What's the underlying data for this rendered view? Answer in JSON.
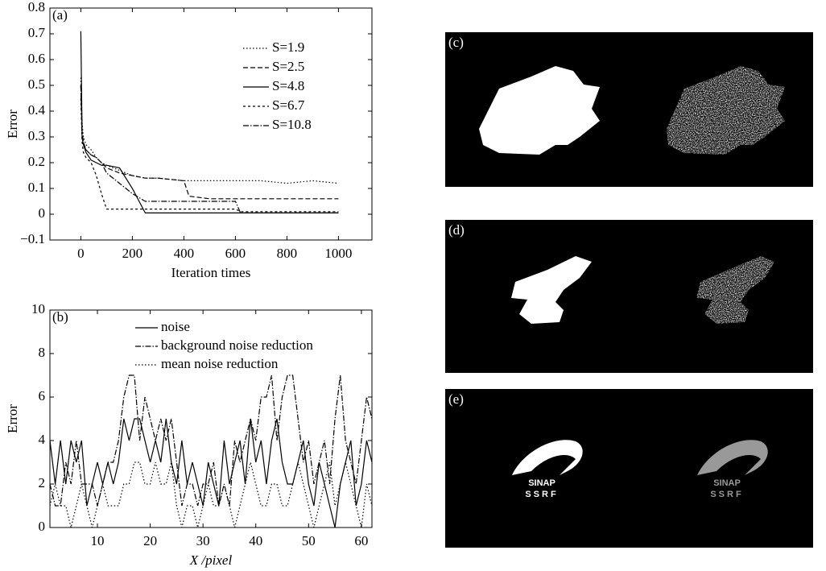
{
  "chart_data": [
    {
      "type": "line",
      "panel_label": "(a)",
      "x_label": "Iteration times",
      "y_label": "Error",
      "x": [
        0,
        5,
        10,
        20,
        40,
        60,
        80,
        100,
        150,
        200,
        250,
        300,
        400,
        420,
        500,
        600,
        620,
        700,
        800,
        900,
        1000
      ],
      "xlim": [
        -120,
        1130
      ],
      "xticks": [
        0,
        200,
        400,
        600,
        800,
        1000
      ],
      "ylim": [
        -0.1,
        0.8
      ],
      "yticks": [
        {
          "value": -0.1,
          "label": "−0.1"
        },
        0,
        0.1,
        0.2,
        0.3,
        0.4,
        0.5,
        0.6,
        0.7,
        0.8
      ],
      "legend": "upper right",
      "series": [
        {
          "name": "S=1.9",
          "color": "#000",
          "line_style": "dotted",
          "values": [
            0.53,
            0.35,
            0.3,
            0.27,
            0.25,
            0.22,
            0.2,
            0.19,
            0.17,
            0.15,
            0.14,
            0.14,
            0.13,
            0.13,
            0.13,
            0.13,
            0.13,
            0.13,
            0.12,
            0.13,
            0.12
          ]
        },
        {
          "name": "S=2.5",
          "color": "#000",
          "line_style": "dashed",
          "values": [
            0.5,
            0.32,
            0.28,
            0.25,
            0.23,
            0.22,
            0.2,
            0.18,
            0.16,
            0.15,
            0.14,
            0.14,
            0.13,
            0.07,
            0.06,
            0.06,
            0.06,
            0.06,
            0.06,
            0.06,
            0.06
          ]
        },
        {
          "name": "S=4.8",
          "color": "#000",
          "line_style": "solid",
          "values": [
            0.71,
            0.3,
            0.27,
            0.24,
            0.21,
            0.2,
            0.19,
            0.19,
            0.18,
            0.1,
            0.005,
            0.005,
            0.005,
            0.005,
            0.005,
            0.005,
            0.005,
            0.005,
            0.005,
            0.005,
            0.005
          ]
        },
        {
          "name": "S=6.7",
          "color": "#000",
          "line_style": "short-dashed",
          "values": [
            0.45,
            0.28,
            0.24,
            0.22,
            0.2,
            0.15,
            0.08,
            0.02,
            0.02,
            0.02,
            0.02,
            0.02,
            0.02,
            0.02,
            0.02,
            0.02,
            0.01,
            0.01,
            0.01,
            0.01,
            0.01
          ]
        },
        {
          "name": "S=10.8",
          "color": "#000",
          "line_style": "dash-dot",
          "values": [
            0.5,
            0.3,
            0.27,
            0.25,
            0.23,
            0.22,
            0.2,
            0.16,
            0.12,
            0.08,
            0.05,
            0.05,
            0.05,
            0.05,
            0.05,
            0.05,
            0.005,
            0.005,
            0.005,
            0.005,
            0.005
          ]
        }
      ]
    },
    {
      "type": "line",
      "panel_label": "(b)",
      "x_label": "X /pixel",
      "y_label": "Error",
      "x": [
        1,
        2,
        3,
        4,
        5,
        6,
        7,
        8,
        9,
        10,
        11,
        12,
        13,
        14,
        15,
        16,
        17,
        18,
        19,
        20,
        21,
        22,
        23,
        24,
        25,
        26,
        27,
        28,
        29,
        30,
        31,
        32,
        33,
        34,
        35,
        36,
        37,
        38,
        39,
        40,
        41,
        42,
        43,
        44,
        45,
        46,
        47,
        48,
        49,
        50,
        51,
        52,
        53,
        54,
        55,
        56,
        57,
        58,
        59,
        60,
        61,
        62
      ],
      "xlim": [
        1,
        62
      ],
      "xticks": [
        10,
        20,
        30,
        40,
        50,
        60
      ],
      "ylim": [
        0,
        10
      ],
      "yticks": [
        0,
        2,
        4,
        6,
        8,
        10
      ],
      "legend": "upper center",
      "series": [
        {
          "name": "noise",
          "color": "#000",
          "line_style": "solid",
          "values": [
            4,
            2,
            4,
            2,
            4,
            3,
            4,
            1,
            2,
            3,
            2,
            3,
            2,
            3,
            5,
            4,
            5,
            5,
            4,
            3,
            4,
            3,
            5,
            3,
            2,
            4,
            2,
            3,
            2,
            1,
            3,
            2,
            1,
            4,
            2,
            3,
            4,
            2,
            5,
            3,
            4,
            2,
            4,
            5,
            3,
            2,
            2,
            3,
            4,
            2,
            1,
            3,
            2,
            1,
            0,
            2,
            3,
            4,
            1,
            2,
            4,
            3
          ]
        },
        {
          "name": "background noise reduction",
          "color": "#000",
          "line_style": "dash-dot",
          "values": [
            2,
            1,
            1,
            3,
            2,
            4,
            2,
            2,
            2,
            1,
            2,
            3,
            3,
            4,
            6,
            7,
            7,
            4,
            6,
            5,
            4,
            5,
            4,
            5,
            3,
            1,
            2,
            2,
            1,
            2,
            2,
            3,
            1,
            2,
            1,
            4,
            3,
            4,
            5,
            4,
            6,
            6,
            7,
            4,
            6,
            7,
            7,
            5,
            3,
            4,
            2,
            3,
            4,
            2,
            5,
            7,
            4,
            3,
            2,
            4,
            6,
            5
          ]
        },
        {
          "name": "mean noise reduction",
          "color": "#000",
          "line_style": "dotted",
          "values": [
            1,
            2,
            1,
            1,
            0,
            1,
            2,
            1,
            0,
            1,
            2,
            1,
            1,
            1,
            2,
            2,
            3,
            3,
            2,
            2,
            3,
            2,
            2,
            3,
            1,
            0,
            1,
            1,
            0,
            1,
            2,
            1,
            1,
            2,
            1,
            0,
            1,
            2,
            3,
            2,
            1,
            1,
            2,
            2,
            1,
            1,
            2,
            3,
            2,
            1,
            0,
            1,
            2,
            3,
            1,
            2,
            3,
            2,
            1,
            0,
            2,
            1
          ]
        }
      ]
    }
  ],
  "panels": [
    {
      "label": "(c)"
    },
    {
      "label": "(d)"
    },
    {
      "label": "(e)",
      "logo_text": [
        "SINAP",
        "SSRF"
      ]
    }
  ]
}
